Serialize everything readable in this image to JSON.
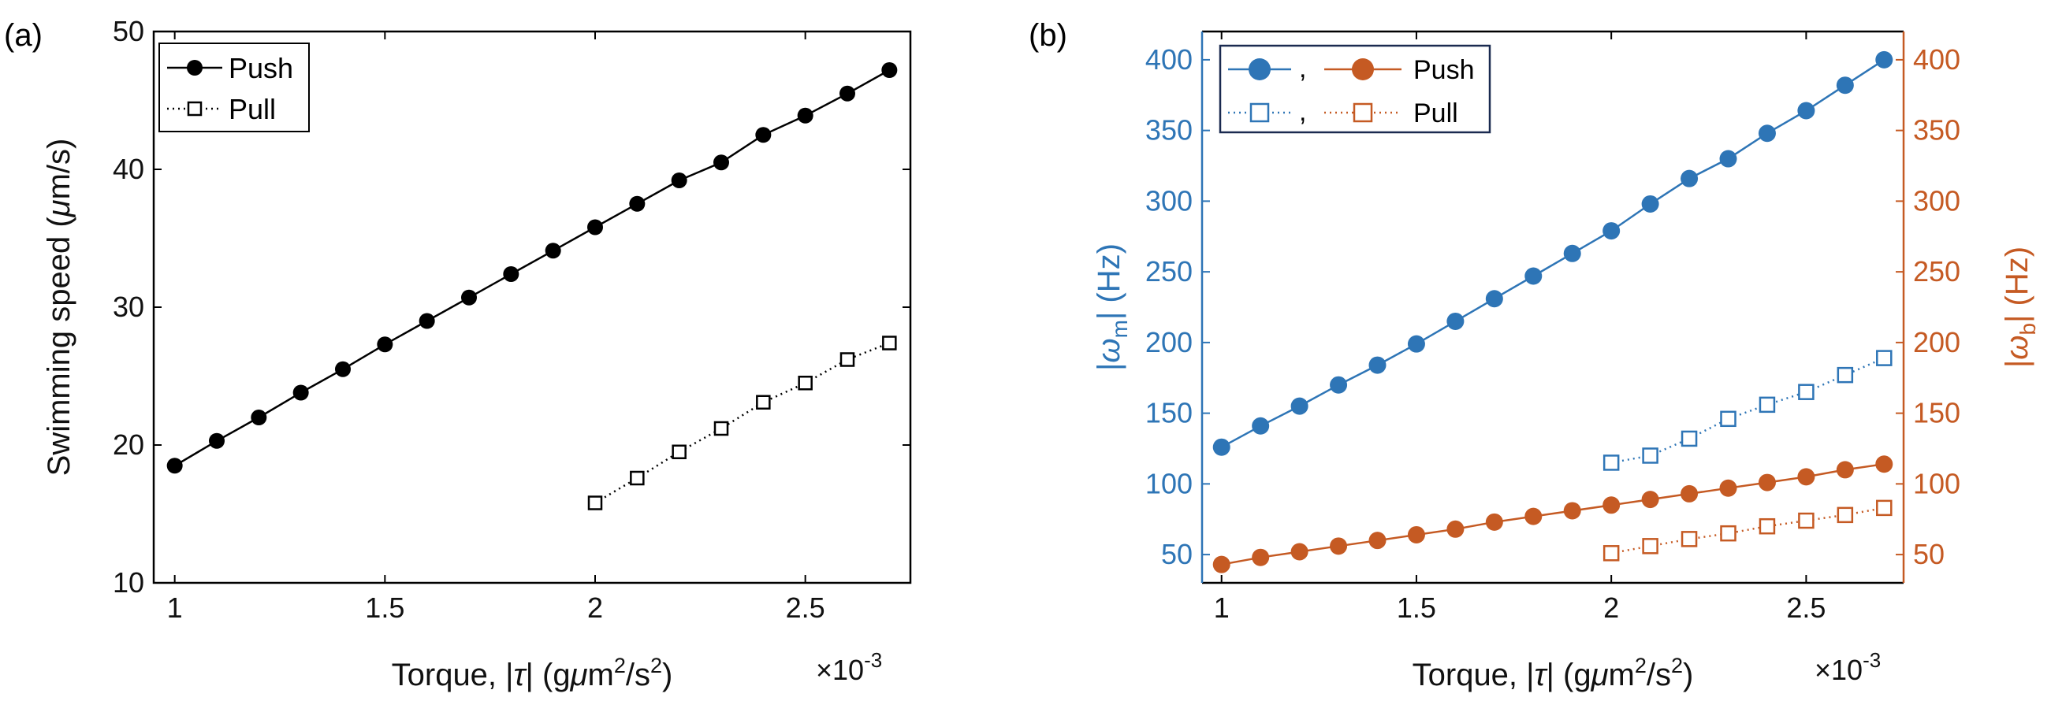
{
  "panel_a_label": "(a)",
  "panel_b_label": "(b)",
  "colors": {
    "black": "#000000",
    "blue": "#2E75B6",
    "orange": "#C55A23"
  },
  "chart_data": [
    {
      "id": "a",
      "type": "line",
      "xlabel": "Torque, |τ| (gμm²/s²)",
      "xlabel_parts": {
        "prefix": "Torque, |",
        "tau": "τ",
        "mid": "| (g",
        "mu": "μ",
        "m": "m",
        "sup1": "2",
        "slash": "/s",
        "sup2": "2",
        "close": ")"
      },
      "x_multiplier": "×10",
      "x_multiplier_exp": "-3",
      "ylabel": "Swimming speed (μm/s)",
      "ylabel_parts": {
        "prefix": "Swimming speed (",
        "mu": "μ",
        "suffix": "m/s)"
      },
      "xlim": [
        0.95,
        2.75
      ],
      "ylim": [
        10,
        50
      ],
      "xticks": [
        1,
        1.5,
        2,
        2.5
      ],
      "xtick_labels": [
        "1",
        "1.5",
        "2",
        "2.5"
      ],
      "yticks": [
        10,
        20,
        30,
        40,
        50
      ],
      "ytick_labels": [
        "10",
        "20",
        "30",
        "40",
        "50"
      ],
      "legend": [
        "Push",
        "Pull"
      ],
      "series": [
        {
          "name": "Push",
          "style": "solid",
          "marker": "filled-circle",
          "color": "#000000",
          "x": [
            1.0,
            1.1,
            1.2,
            1.3,
            1.4,
            1.5,
            1.6,
            1.7,
            1.8,
            1.9,
            2.0,
            2.1,
            2.2,
            2.3,
            2.4,
            2.5,
            2.6,
            2.7
          ],
          "y": [
            18.5,
            20.3,
            22.0,
            23.8,
            25.5,
            27.3,
            29.0,
            30.7,
            32.4,
            34.1,
            35.8,
            37.5,
            39.2,
            40.5,
            42.5,
            43.9,
            45.5,
            47.2
          ]
        },
        {
          "name": "Pull",
          "style": "dotted",
          "marker": "open-square",
          "color": "#000000",
          "x": [
            2.0,
            2.1,
            2.2,
            2.3,
            2.4,
            2.5,
            2.6,
            2.7
          ],
          "y": [
            15.8,
            17.6,
            19.5,
            21.2,
            23.1,
            24.5,
            26.2,
            27.4
          ]
        }
      ]
    },
    {
      "id": "b",
      "type": "line",
      "xlabel": "Torque, |τ| (gμm²/s²)",
      "xlabel_parts": {
        "prefix": "Torque, |",
        "tau": "τ",
        "mid": "| (g",
        "mu": "μ",
        "m": "m",
        "sup1": "2",
        "slash": "/s",
        "sup2": "2",
        "close": ")"
      },
      "x_multiplier": "×10",
      "x_multiplier_exp": "-3",
      "ylabel_left": "|ωm| (Hz)",
      "ylabel_left_parts": {
        "bar1": "|",
        "omega": "ω",
        "sub": "m",
        "bar2": "| (Hz)"
      },
      "ylabel_right": "|ωb| (Hz)",
      "ylabel_right_parts": {
        "bar1": "|",
        "omega": "ω",
        "sub": "b",
        "bar2": "| (Hz)"
      },
      "xlim": [
        0.95,
        2.75
      ],
      "ylim": [
        30,
        420
      ],
      "xticks": [
        1,
        1.5,
        2,
        2.5
      ],
      "xtick_labels": [
        "1",
        "1.5",
        "2",
        "2.5"
      ],
      "yticks": [
        50,
        100,
        150,
        200,
        250,
        300,
        350,
        400
      ],
      "ytick_labels": [
        "50",
        "100",
        "150",
        "200",
        "250",
        "300",
        "350",
        "400"
      ],
      "legend": [
        ", ",
        "Push",
        ", ",
        "Pull"
      ],
      "legend_labels": {
        "push": "Push",
        "pull": "Pull",
        "sep": ","
      },
      "series": [
        {
          "name": "Push |ωm|",
          "style": "solid",
          "marker": "filled-circle",
          "color": "#2E75B6",
          "x": [
            1.0,
            1.1,
            1.2,
            1.3,
            1.4,
            1.5,
            1.6,
            1.7,
            1.8,
            1.9,
            2.0,
            2.1,
            2.2,
            2.3,
            2.4,
            2.5,
            2.6,
            2.7
          ],
          "y": [
            126,
            141,
            155,
            170,
            184,
            199,
            215,
            231,
            247,
            263,
            279,
            298,
            316,
            330,
            348,
            364,
            382,
            400
          ]
        },
        {
          "name": "Pull |ωm|",
          "style": "dotted",
          "marker": "open-square",
          "color": "#2E75B6",
          "x": [
            2.0,
            2.1,
            2.2,
            2.3,
            2.4,
            2.5,
            2.6,
            2.7
          ],
          "y": [
            115,
            120,
            132,
            146,
            156,
            165,
            177,
            189
          ]
        },
        {
          "name": "Push |ωb|",
          "style": "solid",
          "marker": "filled-circle",
          "color": "#C55A23",
          "x": [
            1.0,
            1.1,
            1.2,
            1.3,
            1.4,
            1.5,
            1.6,
            1.7,
            1.8,
            1.9,
            2.0,
            2.1,
            2.2,
            2.3,
            2.4,
            2.5,
            2.6,
            2.7
          ],
          "y": [
            43,
            48,
            52,
            56,
            60,
            64,
            68,
            73,
            77,
            81,
            85,
            89,
            93,
            97,
            101,
            105,
            110,
            114
          ]
        },
        {
          "name": "Pull |ωb|",
          "style": "dotted",
          "marker": "open-square",
          "color": "#C55A23",
          "x": [
            2.0,
            2.1,
            2.2,
            2.3,
            2.4,
            2.5,
            2.6,
            2.7
          ],
          "y": [
            51,
            56,
            61,
            65,
            70,
            74,
            78,
            83
          ]
        }
      ]
    }
  ]
}
